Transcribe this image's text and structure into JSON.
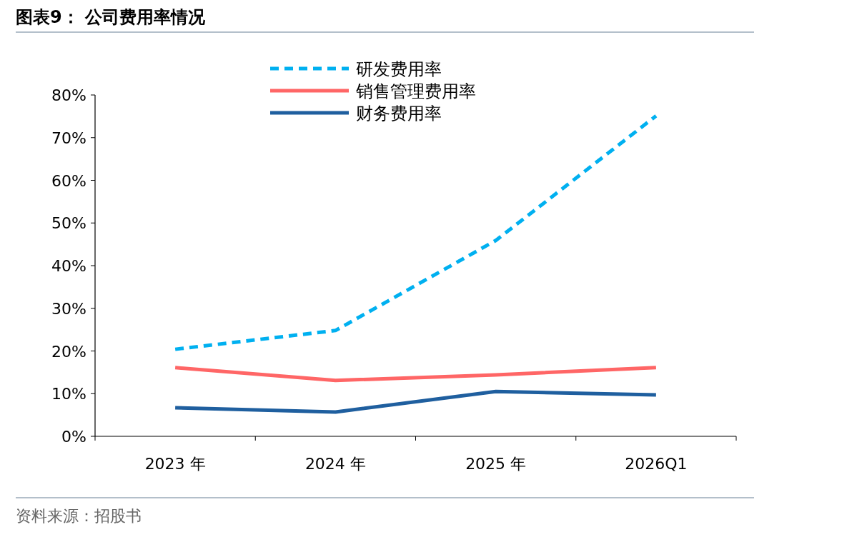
{
  "chart_data": {
    "type": "line",
    "title": "图表9： 公司费用率情况",
    "categories": [
      "2023 年",
      "2024 年",
      "2025 年",
      "2026Q1"
    ],
    "series": [
      {
        "name": "研发费用率",
        "color": "#00b0f0",
        "line_style": "dashed",
        "values": [
          20.4,
          24.8,
          45.9,
          75.1
        ]
      },
      {
        "name": "销售管理费用率",
        "color": "#ff6666",
        "line_style": "solid",
        "values": [
          16.1,
          13.1,
          14.4,
          16.1
        ]
      },
      {
        "name": "财务费用率",
        "color": "#1f5f9f",
        "line_style": "solid",
        "values": [
          6.7,
          5.7,
          10.5,
          9.7
        ]
      }
    ],
    "ylim": [
      0,
      80
    ],
    "yticks": [
      {
        "value": 0,
        "label": "0%"
      },
      {
        "value": 10,
        "label": "10%"
      },
      {
        "value": 20,
        "label": "20%"
      },
      {
        "value": 30,
        "label": "30%"
      },
      {
        "value": 40,
        "label": "40%"
      },
      {
        "value": 50,
        "label": "50%"
      },
      {
        "value": 60,
        "label": "60%"
      },
      {
        "value": 70,
        "label": "70%"
      },
      {
        "value": 80,
        "label": "80%"
      }
    ],
    "grid": false,
    "legend": "top",
    "marker": "none",
    "annotations": [
      "资料来源：招股书"
    ]
  }
}
